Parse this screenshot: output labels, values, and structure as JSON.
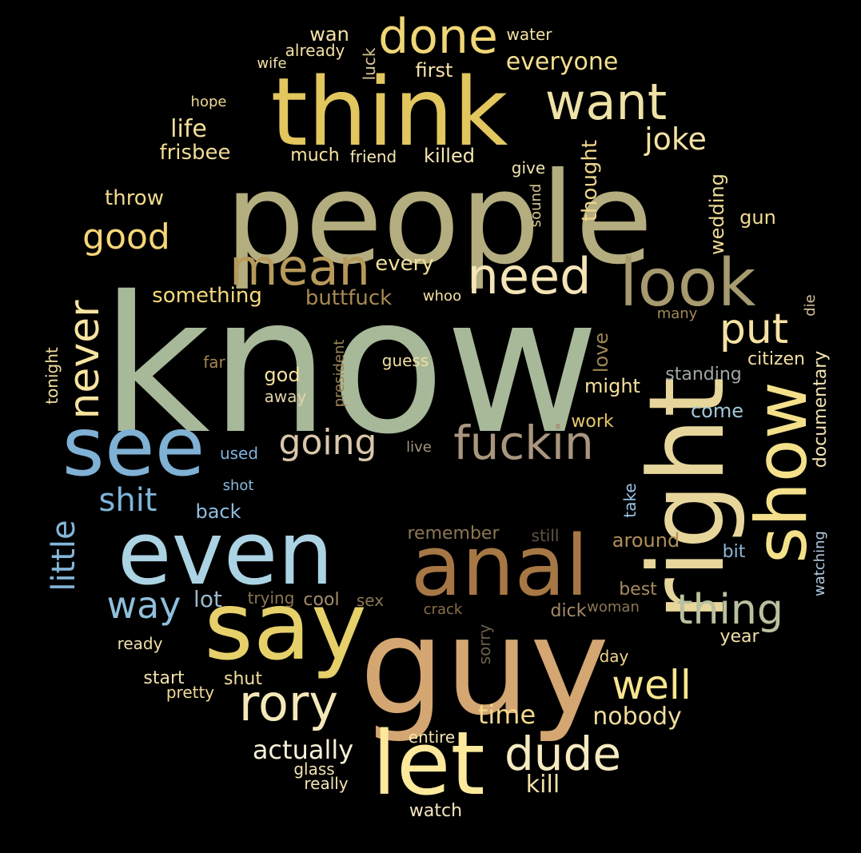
{
  "colors": {
    "background": "#000000"
  },
  "words": [
    {
      "text": "know",
      "color": "#a8b99a"
    },
    {
      "text": "people",
      "color": "#b4ad7f"
    },
    {
      "text": "think",
      "color": "#e2c65e"
    },
    {
      "text": "guy",
      "color": "#d3a672"
    },
    {
      "text": "say",
      "color": "#e6d06a"
    },
    {
      "text": "even",
      "color": "#abd3e3"
    },
    {
      "text": "anal",
      "color": "#a67745"
    },
    {
      "text": "right",
      "color": "#e7d69c"
    },
    {
      "text": "show",
      "color": "#f4e08a"
    },
    {
      "text": "see",
      "color": "#7fb1d4"
    },
    {
      "text": "look",
      "color": "#a69a6e"
    },
    {
      "text": "let",
      "color": "#fce99c"
    },
    {
      "text": "done",
      "color": "#f0d675"
    },
    {
      "text": "want",
      "color": "#eee2a6"
    },
    {
      "text": "need",
      "color": "#f4e4b6"
    },
    {
      "text": "mean",
      "color": "#b79a5b"
    },
    {
      "text": "fuckin",
      "color": "#a9967e"
    },
    {
      "text": "rory",
      "color": "#f4e8b8"
    },
    {
      "text": "dude",
      "color": "#f6ebc1"
    },
    {
      "text": "never",
      "color": "#f7e4a0"
    },
    {
      "text": "put",
      "color": "#f5e2a3"
    },
    {
      "text": "thing",
      "color": "#b9c19e"
    },
    {
      "text": "well",
      "color": "#f7e590"
    },
    {
      "text": "good",
      "color": "#f6d67a"
    },
    {
      "text": "going",
      "color": "#d8c7aa"
    },
    {
      "text": "way",
      "color": "#8fbfdc"
    },
    {
      "text": "shit",
      "color": "#7fb5d9"
    },
    {
      "text": "little",
      "color": "#85b6da"
    },
    {
      "text": "joke",
      "color": "#f2e1a2"
    },
    {
      "text": "everyone",
      "color": "#f5df8e"
    },
    {
      "text": "actually",
      "color": "#f7f0d8"
    },
    {
      "text": "nobody",
      "color": "#f1dc9d"
    },
    {
      "text": "time",
      "color": "#f3d98a"
    },
    {
      "text": "kill",
      "color": "#f2e1a6"
    },
    {
      "text": "life",
      "color": "#f3df99"
    },
    {
      "text": "frisbee",
      "color": "#f2db95"
    },
    {
      "text": "throw",
      "color": "#f2da8c"
    },
    {
      "text": "something",
      "color": "#f6da7c"
    },
    {
      "text": "buttfuck",
      "color": "#a68a54"
    },
    {
      "text": "every",
      "color": "#f0df9c"
    },
    {
      "text": "thought",
      "color": "#eed58c"
    },
    {
      "text": "wedding",
      "color": "#f0dc96"
    },
    {
      "text": "gun",
      "color": "#f2dc8f"
    },
    {
      "text": "killed",
      "color": "#f6e6b3"
    },
    {
      "text": "much",
      "color": "#f7e3a4"
    },
    {
      "text": "friend",
      "color": "#f6e5b5"
    },
    {
      "text": "first",
      "color": "#f6e3ab"
    },
    {
      "text": "give",
      "color": "#f3e4b0"
    },
    {
      "text": "sound",
      "color": "#d7c592"
    },
    {
      "text": "water",
      "color": "#f2e0a4"
    },
    {
      "text": "wan",
      "color": "#f5e3a9"
    },
    {
      "text": "already",
      "color": "#f3e0a5"
    },
    {
      "text": "wife",
      "color": "#f3e0a5"
    },
    {
      "text": "luck",
      "color": "#d8c497"
    },
    {
      "text": "hope",
      "color": "#efd98f"
    },
    {
      "text": "president",
      "color": "#9c8354"
    },
    {
      "text": "whoo",
      "color": "#f6e1a1"
    },
    {
      "text": "many",
      "color": "#a3895a"
    },
    {
      "text": "die",
      "color": "#d8c29a"
    },
    {
      "text": "citizen",
      "color": "#f2df9f"
    },
    {
      "text": "standing",
      "color": "#9fa7a3"
    },
    {
      "text": "documentary",
      "color": "#f3e3b2"
    },
    {
      "text": "love",
      "color": "#9f8656"
    },
    {
      "text": "might",
      "color": "#f5e09c"
    },
    {
      "text": "come",
      "color": "#a2c8d8"
    },
    {
      "text": "work",
      "color": "#e9c96b"
    },
    {
      "text": "god",
      "color": "#f4e0a1"
    },
    {
      "text": "away",
      "color": "#e2d4a9"
    },
    {
      "text": "far",
      "color": "#a58650"
    },
    {
      "text": "guess",
      "color": "#f2dfa1"
    },
    {
      "text": "tonight",
      "color": "#f4de9e"
    },
    {
      "text": "used",
      "color": "#7fb3dd"
    },
    {
      "text": "live",
      "color": "#a3967f"
    },
    {
      "text": "shot",
      "color": "#8ab9db"
    },
    {
      "text": "back",
      "color": "#8fbfe0"
    },
    {
      "text": "take",
      "color": "#9cc4e4"
    },
    {
      "text": "remember",
      "color": "#8e7651"
    },
    {
      "text": "still",
      "color": "#5e5545"
    },
    {
      "text": "around",
      "color": "#ae8f59"
    },
    {
      "text": "bit",
      "color": "#8fb6d7"
    },
    {
      "text": "watching",
      "color": "#b1cbe3"
    },
    {
      "text": "lot",
      "color": "#9ab8ca"
    },
    {
      "text": "trying",
      "color": "#8c7651"
    },
    {
      "text": "cool",
      "color": "#a48d6b"
    },
    {
      "text": "sex",
      "color": "#8c7651"
    },
    {
      "text": "crack",
      "color": "#8c6f48"
    },
    {
      "text": "dick",
      "color": "#a48a67"
    },
    {
      "text": "woman",
      "color": "#8c7651"
    },
    {
      "text": "best",
      "color": "#a58a5d"
    },
    {
      "text": "ready",
      "color": "#f2dfaa"
    },
    {
      "text": "sorry",
      "color": "#6d5f49"
    },
    {
      "text": "year",
      "color": "#f3e0a8"
    },
    {
      "text": "day",
      "color": "#f0d58a"
    },
    {
      "text": "start",
      "color": "#f3e1ad"
    },
    {
      "text": "shut",
      "color": "#f2dda2"
    },
    {
      "text": "pretty",
      "color": "#f0d896"
    },
    {
      "text": "entire",
      "color": "#f4e3b0"
    },
    {
      "text": "glass",
      "color": "#f2e1ac"
    },
    {
      "text": "really",
      "color": "#f4e5b5"
    },
    {
      "text": "watch",
      "color": "#f5e6be"
    }
  ]
}
